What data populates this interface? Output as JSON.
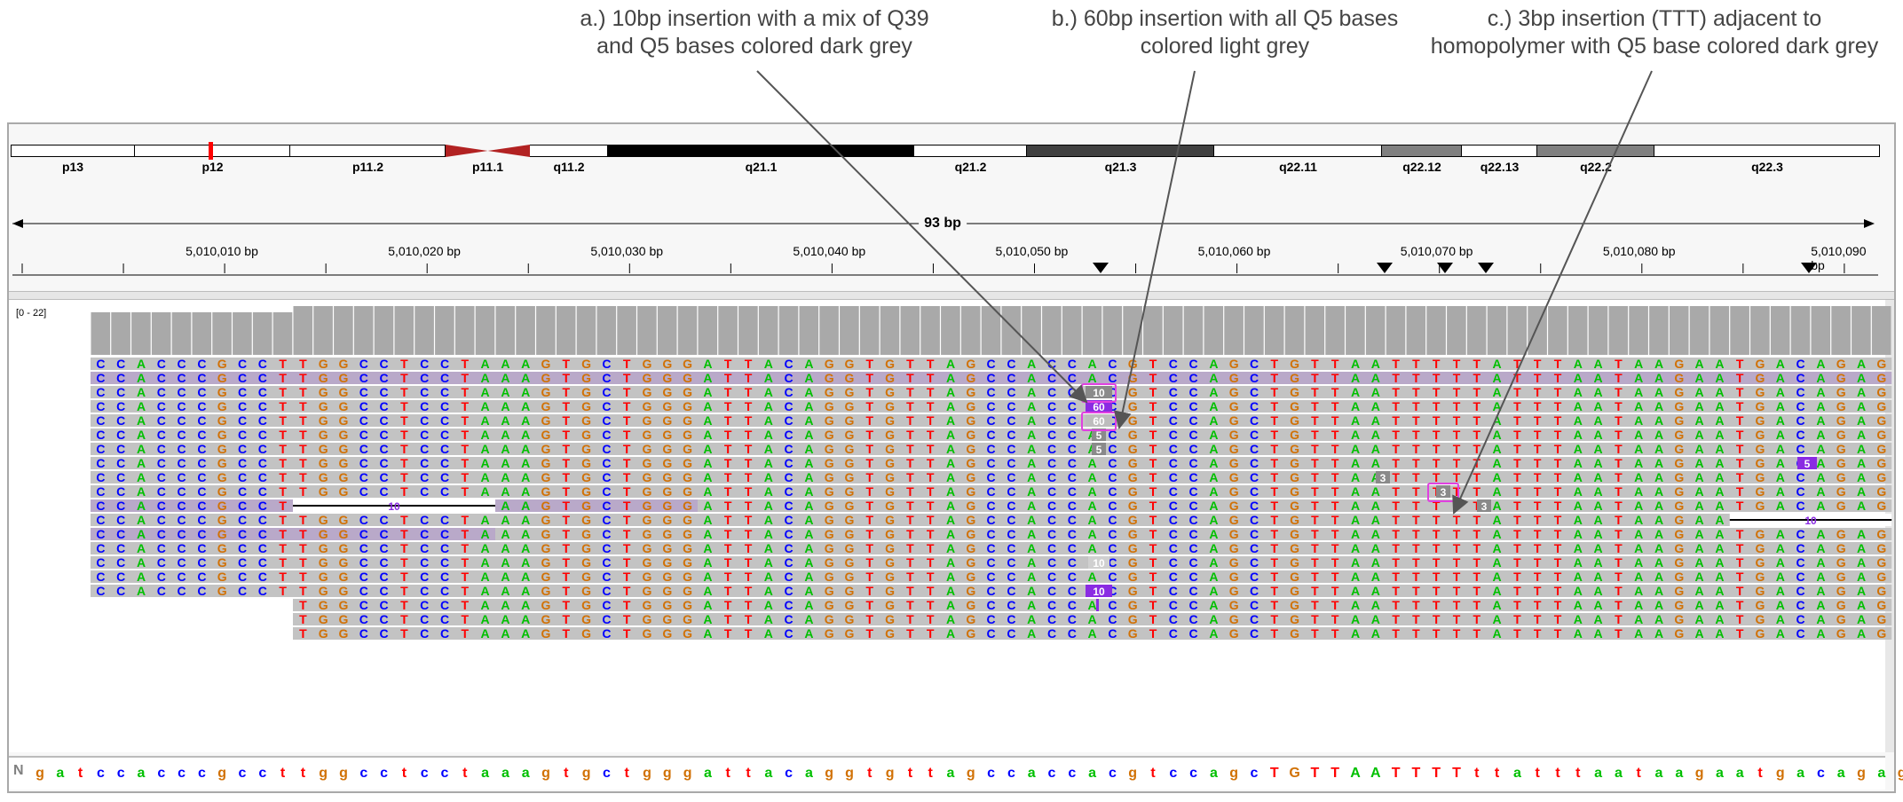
{
  "annotations": [
    {
      "line1": "a.) 10bp insertion with a mix of Q39",
      "line2": "and Q5 bases colored dark grey"
    },
    {
      "line1": "b.) 60bp insertion with all Q5 bases",
      "line2": "colored light grey"
    },
    {
      "line1": "c.) 3bp insertion (TTT) adjacent to",
      "line2": "homopolymer with Q5 base colored dark grey"
    }
  ],
  "ideogram": {
    "bands": [
      {
        "label": "p13",
        "color": "#ffffff"
      },
      {
        "label": "p12",
        "color": "#ffffff"
      },
      {
        "label": "p11.2",
        "color": "#ffffff"
      },
      {
        "label": "p11.1",
        "color": "#b22222"
      },
      {
        "label": "q11.2",
        "color": "#ffffff"
      },
      {
        "label": "q21.1",
        "color": "#000000"
      },
      {
        "label": "q21.2",
        "color": "#ffffff"
      },
      {
        "label": "q21.3",
        "color": "#404040"
      },
      {
        "label": "q22.11",
        "color": "#ffffff"
      },
      {
        "label": "q22.12",
        "color": "#808080"
      },
      {
        "label": "q22.13",
        "color": "#ffffff"
      },
      {
        "label": "q22.2",
        "color": "#808080"
      },
      {
        "label": "q22.3",
        "color": "#ffffff"
      }
    ],
    "current_region_color": "#ff0000"
  },
  "ruler": {
    "span": "93 bp",
    "ticks": [
      "5,010,010 bp",
      "5,010,020 bp",
      "5,010,030 bp",
      "5,010,040 bp",
      "5,010,050 bp",
      "5,010,060 bp",
      "5,010,070 bp",
      "5,010,080 bp",
      "5,010,090 bp"
    ]
  },
  "coverage": {
    "range": "[0 - 22]",
    "color": "#a9a9a9"
  },
  "reference_sequence": {
    "first_symbol": "N",
    "bases": "gatccacccgccttggcctcctaaagtgctgggattacaggtgttagccaccacgtccagcTGTTAATTTTttatttaataagaatgacagag"
  },
  "read_sequence": "CCACCCGCCTTGGCCTCCTAAAGTGCTGGGATTACAGGTGTTAGCCACCACGTCCAGCTGTTAATTTTTATTTAATAAGAATGACAGAG",
  "insertion_labels": {
    "ten": "10",
    "sixty": "60",
    "five": "5",
    "three": "3",
    "deletion": "10"
  },
  "colors": {
    "A": "#00c000",
    "C": "#0000ff",
    "G": "#d17105",
    "T": "#ff0000",
    "read_fill": "#c3c3c3",
    "read_fill_mq0": "#b9a9c9",
    "insertion_purple": "#8a2be2",
    "highlight_box": "#e040e0",
    "annotation_arrow": "#555555"
  }
}
